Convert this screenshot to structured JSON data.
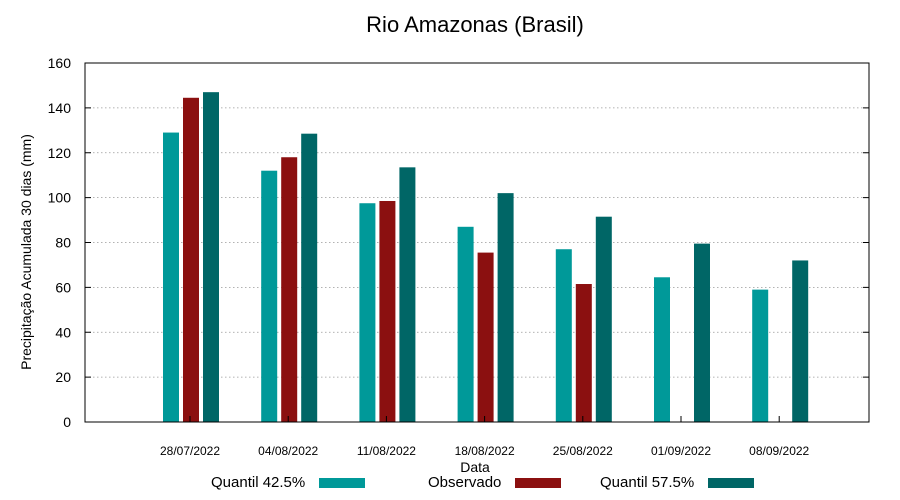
{
  "chart_data": {
    "type": "bar",
    "title": "Rio Amazonas (Brasil)",
    "xlabel": "Data",
    "ylabel": "Precipitação Acumulada 30 dias (mm)",
    "ylim": [
      0,
      160
    ],
    "yticks": [
      "0",
      "20",
      "40",
      "60",
      "80",
      "100",
      "120",
      "140",
      "160"
    ],
    "grid": true,
    "categories": [
      "28/07/2022",
      "04/08/2022",
      "11/08/2022",
      "18/08/2022",
      "25/08/2022",
      "01/09/2022",
      "08/09/2022"
    ],
    "series": [
      {
        "name": "Quantil 42.5%",
        "color": "#009999",
        "values": [
          129,
          112,
          97.5,
          87,
          77,
          64.5,
          59
        ]
      },
      {
        "name": "Observado",
        "color": "#8b1010",
        "values": [
          144.5,
          118,
          98.5,
          75.5,
          61.5,
          null,
          null
        ]
      },
      {
        "name": "Quantil 57.5%",
        "color": "#006666",
        "values": [
          147,
          128.5,
          113.5,
          102,
          91.5,
          79.5,
          72
        ]
      }
    ]
  }
}
